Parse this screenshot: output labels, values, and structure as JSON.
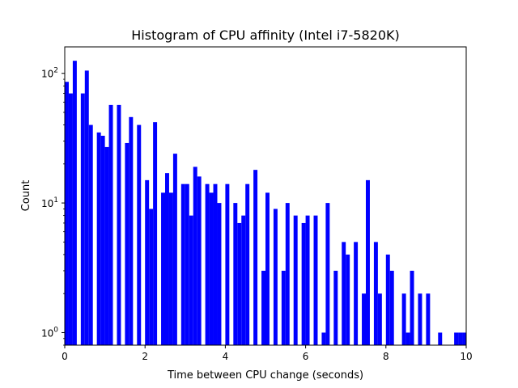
{
  "chart_data": {
    "type": "bar",
    "title": "Histogram of CPU affinity (Intel i7-5820K)",
    "xlabel": "Time between CPU change (seconds)",
    "ylabel": "Count",
    "xlim": [
      0,
      10
    ],
    "ylim": [
      0.8,
      160
    ],
    "yscale": "log",
    "grid": false,
    "bar_color": "#0000ff",
    "xticks": [
      0,
      2,
      4,
      6,
      8,
      10
    ],
    "xtick_labels": [
      "0",
      "2",
      "4",
      "6",
      "8",
      "10"
    ],
    "yticks": [
      1,
      10,
      100
    ],
    "ytick_labels": [
      {
        "base": "10",
        "exp": "0"
      },
      {
        "base": "10",
        "exp": "1"
      },
      {
        "base": "10",
        "exp": "2"
      }
    ],
    "bin_width": 0.1,
    "bins": [
      {
        "x": 0.0,
        "count": 86
      },
      {
        "x": 0.1,
        "count": 70
      },
      {
        "x": 0.2,
        "count": 125
      },
      {
        "x": 0.4,
        "count": 70
      },
      {
        "x": 0.5,
        "count": 105
      },
      {
        "x": 0.6,
        "count": 40
      },
      {
        "x": 0.8,
        "count": 35
      },
      {
        "x": 0.9,
        "count": 33
      },
      {
        "x": 1.0,
        "count": 27
      },
      {
        "x": 1.1,
        "count": 57
      },
      {
        "x": 1.3,
        "count": 57
      },
      {
        "x": 1.5,
        "count": 29
      },
      {
        "x": 1.6,
        "count": 46
      },
      {
        "x": 1.8,
        "count": 40
      },
      {
        "x": 2.0,
        "count": 15
      },
      {
        "x": 2.1,
        "count": 9
      },
      {
        "x": 2.2,
        "count": 42
      },
      {
        "x": 2.4,
        "count": 12
      },
      {
        "x": 2.5,
        "count": 17
      },
      {
        "x": 2.6,
        "count": 12
      },
      {
        "x": 2.7,
        "count": 24
      },
      {
        "x": 2.9,
        "count": 14
      },
      {
        "x": 3.0,
        "count": 14
      },
      {
        "x": 3.1,
        "count": 8
      },
      {
        "x": 3.2,
        "count": 19
      },
      {
        "x": 3.3,
        "count": 16
      },
      {
        "x": 3.5,
        "count": 14
      },
      {
        "x": 3.6,
        "count": 12
      },
      {
        "x": 3.7,
        "count": 14
      },
      {
        "x": 3.8,
        "count": 10
      },
      {
        "x": 4.0,
        "count": 14
      },
      {
        "x": 4.2,
        "count": 10
      },
      {
        "x": 4.3,
        "count": 7
      },
      {
        "x": 4.4,
        "count": 8
      },
      {
        "x": 4.5,
        "count": 14
      },
      {
        "x": 4.7,
        "count": 18
      },
      {
        "x": 4.9,
        "count": 3
      },
      {
        "x": 5.0,
        "count": 12
      },
      {
        "x": 5.2,
        "count": 9
      },
      {
        "x": 5.4,
        "count": 3
      },
      {
        "x": 5.5,
        "count": 10
      },
      {
        "x": 5.7,
        "count": 8
      },
      {
        "x": 5.9,
        "count": 7
      },
      {
        "x": 6.0,
        "count": 8
      },
      {
        "x": 6.2,
        "count": 8
      },
      {
        "x": 6.4,
        "count": 1
      },
      {
        "x": 6.5,
        "count": 10
      },
      {
        "x": 6.7,
        "count": 3
      },
      {
        "x": 6.9,
        "count": 5
      },
      {
        "x": 7.0,
        "count": 4
      },
      {
        "x": 7.2,
        "count": 5
      },
      {
        "x": 7.4,
        "count": 2
      },
      {
        "x": 7.5,
        "count": 15
      },
      {
        "x": 7.7,
        "count": 5
      },
      {
        "x": 7.8,
        "count": 2
      },
      {
        "x": 8.0,
        "count": 4
      },
      {
        "x": 8.1,
        "count": 3
      },
      {
        "x": 8.4,
        "count": 2
      },
      {
        "x": 8.5,
        "count": 1
      },
      {
        "x": 8.6,
        "count": 3
      },
      {
        "x": 8.8,
        "count": 2
      },
      {
        "x": 9.0,
        "count": 2
      },
      {
        "x": 9.3,
        "count": 1
      },
      {
        "x": 9.7,
        "count": 1
      },
      {
        "x": 9.8,
        "count": 1
      },
      {
        "x": 9.9,
        "count": 1
      }
    ]
  }
}
